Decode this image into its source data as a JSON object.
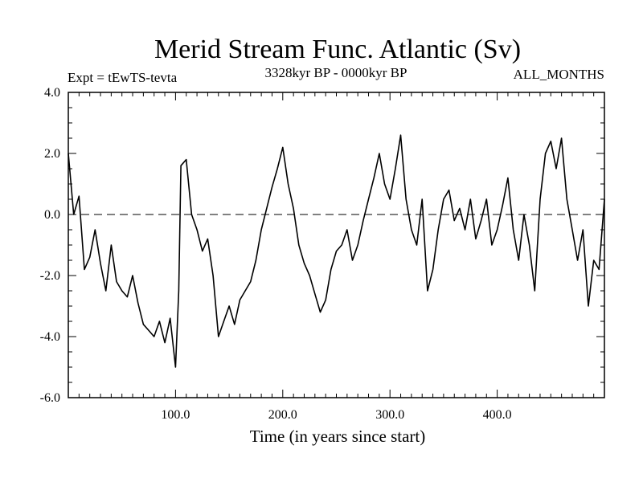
{
  "chart_data": {
    "type": "line",
    "title": "Merid Stream Func. Atlantic (Sv)",
    "subtitle_left": "Expt = tEwTS-tevta",
    "subtitle_center": "3328kyr BP - 0000kyr BP",
    "subtitle_right": "ALL_MONTHS",
    "xlabel": "Time (in years since start)",
    "ylabel": "",
    "xlim": [
      0,
      500
    ],
    "ylim": [
      -6.0,
      4.0
    ],
    "x_ticks": [
      100,
      200,
      300,
      400
    ],
    "x_tick_labels": [
      "100.0",
      "200.0",
      "300.0",
      "400.0"
    ],
    "y_ticks": [
      4.0,
      2.0,
      0.0,
      -2.0,
      -4.0,
      -6.0
    ],
    "y_tick_labels": [
      "4.0",
      "2.0",
      "0.0",
      "-2.0",
      "-4.0",
      "-6.0"
    ],
    "reference_line": 0.0,
    "series": [
      {
        "name": "Merid Stream Func. Atlantic",
        "x": [
          0,
          5,
          10,
          15,
          20,
          25,
          30,
          35,
          40,
          45,
          50,
          55,
          60,
          65,
          70,
          75,
          80,
          85,
          90,
          95,
          100,
          103,
          105,
          110,
          115,
          120,
          125,
          130,
          135,
          140,
          145,
          150,
          155,
          160,
          165,
          170,
          175,
          180,
          185,
          190,
          195,
          200,
          205,
          210,
          215,
          220,
          225,
          230,
          235,
          240,
          245,
          250,
          255,
          260,
          265,
          270,
          275,
          280,
          285,
          290,
          295,
          300,
          305,
          310,
          315,
          320,
          325,
          330,
          335,
          340,
          345,
          350,
          355,
          360,
          365,
          370,
          375,
          380,
          385,
          390,
          395,
          400,
          405,
          410,
          415,
          420,
          425,
          430,
          435,
          440,
          445,
          450,
          455,
          460,
          465,
          470,
          475,
          480,
          485,
          490,
          495,
          500
        ],
        "values": [
          2.0,
          0.0,
          0.6,
          -1.8,
          -1.4,
          -0.5,
          -1.6,
          -2.5,
          -1.0,
          -2.2,
          -2.5,
          -2.7,
          -2.0,
          -2.9,
          -3.6,
          -3.8,
          -4.0,
          -3.5,
          -4.2,
          -3.4,
          -5.0,
          -2.5,
          1.6,
          1.8,
          0.0,
          -0.5,
          -1.2,
          -0.8,
          -2.0,
          -4.0,
          -3.5,
          -3.0,
          -3.6,
          -2.8,
          -2.5,
          -2.2,
          -1.5,
          -0.5,
          0.2,
          0.9,
          1.5,
          2.2,
          1.0,
          0.2,
          -1.0,
          -1.6,
          -2.0,
          -2.6,
          -3.2,
          -2.8,
          -1.8,
          -1.2,
          -1.0,
          -0.5,
          -1.5,
          -1.0,
          -0.2,
          0.5,
          1.2,
          2.0,
          1.0,
          0.5,
          1.5,
          2.6,
          0.5,
          -0.5,
          -1.0,
          0.5,
          -2.5,
          -1.8,
          -0.5,
          0.5,
          0.8,
          -0.2,
          0.2,
          -0.5,
          0.5,
          -0.8,
          -0.2,
          0.5,
          -1.0,
          -0.5,
          0.3,
          1.2,
          -0.5,
          -1.5,
          0.0,
          -1.0,
          -2.5,
          0.5,
          2.0,
          2.4,
          1.5,
          2.5,
          0.5,
          -0.5,
          -1.5,
          -0.5,
          -3.0,
          -1.5,
          -1.8,
          0.5
        ]
      }
    ]
  }
}
